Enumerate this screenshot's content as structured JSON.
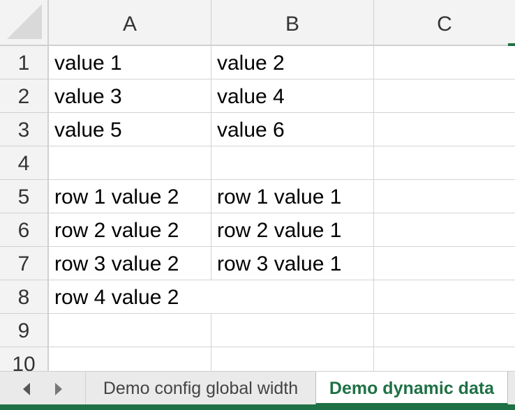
{
  "columns": [
    "A",
    "B",
    "C"
  ],
  "rows": [
    "1",
    "2",
    "3",
    "4",
    "5",
    "6",
    "7",
    "8",
    "9",
    "10"
  ],
  "cells": {
    "r1": {
      "a": "value 1",
      "b": "value 2",
      "c": ""
    },
    "r2": {
      "a": "value 3",
      "b": "value 4",
      "c": ""
    },
    "r3": {
      "a": "value 5",
      "b": "value 6",
      "c": ""
    },
    "r4": {
      "a": "",
      "b": "",
      "c": ""
    },
    "r5": {
      "a": "row 1 value 2",
      "b": "row 1 value 1",
      "c": ""
    },
    "r6": {
      "a": "row 2 value 2",
      "b": "row 2 value 1",
      "c": ""
    },
    "r7": {
      "a": "row 3 value 2",
      "b": "row 3 value 1",
      "c": ""
    },
    "r8": {
      "a": "row 4 value 2",
      "b": "",
      "c": ""
    },
    "r9": {
      "a": "",
      "b": "",
      "c": ""
    },
    "r10": {
      "a": "",
      "b": "",
      "c": ""
    }
  },
  "tabs": {
    "inactive_label": "Demo config global width",
    "active_label": "Demo dynamic data"
  },
  "icons": {
    "prev": "chevron-left-icon",
    "next": "chevron-right-icon"
  },
  "colors": {
    "accent": "#1e7145",
    "header_bg": "#f3f3f3",
    "grid": "#d4d4d4"
  }
}
